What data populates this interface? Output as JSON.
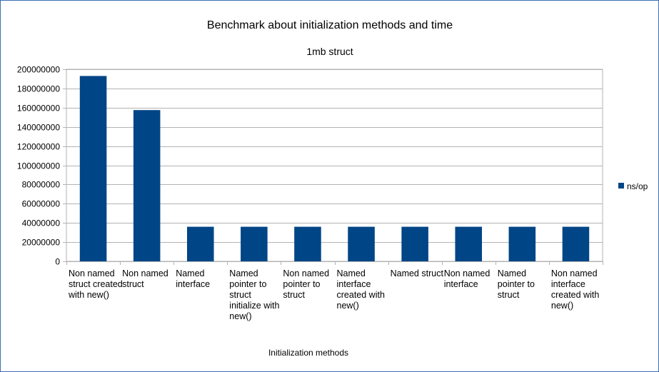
{
  "chart_data": {
    "type": "bar",
    "title": "Benchmark about initialization methods and time",
    "subtitle": "1mb struct",
    "xlabel": "Initialization methods",
    "ylabel": "",
    "ylim": [
      0,
      200000000
    ],
    "yticks": [
      "0",
      "20000000",
      "40000000",
      "60000000",
      "80000000",
      "100000000",
      "120000000",
      "140000000",
      "160000000",
      "180000000",
      "200000000"
    ],
    "grid": true,
    "legend_position": "right",
    "categories": [
      "Non named struct created with new()",
      "Non named struct",
      "Named interface",
      "Named pointer to struct initialize with new()",
      "Non named pointer to struct",
      "Named interface created with new()",
      "Named struct",
      "Non named interface",
      "Named pointer to struct",
      "Non named interface created with new()"
    ],
    "series": [
      {
        "name": "ns/op",
        "color": "#004586",
        "values": [
          193000000,
          157500000,
          36000000,
          36000000,
          36000000,
          36000000,
          36000000,
          36000000,
          36000000,
          36000000
        ]
      }
    ]
  }
}
